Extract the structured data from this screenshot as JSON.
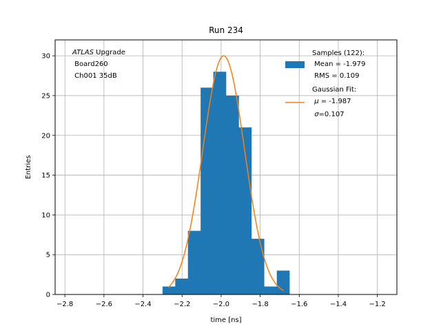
{
  "chart_data": {
    "type": "bar",
    "title": "Run 234",
    "xlabel": "time [ns]",
    "ylabel": "Entries",
    "xlim": [
      -2.85,
      -1.1
    ],
    "ylim": [
      0,
      32
    ],
    "grid": true,
    "x_ticks": [
      -2.8,
      -2.6,
      -2.4,
      -2.2,
      -2.0,
      -1.8,
      -1.6,
      -1.4,
      -1.2
    ],
    "x_tick_labels": [
      "−2.8",
      "−2.6",
      "−2.4",
      "−2.2",
      "−2.0",
      "−1.8",
      "−1.6",
      "−1.4",
      "−1.2"
    ],
    "y_ticks": [
      0,
      5,
      10,
      15,
      20,
      25,
      30
    ],
    "y_tick_labels": [
      "0",
      "5",
      "10",
      "15",
      "20",
      "25",
      "30"
    ],
    "histogram": {
      "bin_edges": [
        -2.3,
        -2.235,
        -2.17,
        -2.105,
        -2.04,
        -1.975,
        -1.91,
        -1.845,
        -1.78,
        -1.715,
        -1.65
      ],
      "counts": [
        1,
        2,
        8,
        26,
        28,
        25,
        21,
        7,
        1,
        3
      ],
      "color": "#1f77b4"
    },
    "fit": {
      "mu": -1.987,
      "sigma": 0.107,
      "amplitude": 30,
      "x_range": [
        -2.27,
        -1.68
      ],
      "color": "#ff7f0e"
    },
    "annotation": {
      "line1_italic": "ATLAS",
      "line1_rest": " Upgrade",
      "line2": " Board260",
      "line3": " Ch001 35dB"
    },
    "legend": {
      "placement": "top-right",
      "samples": {
        "line1": "Samples (122):",
        "line2": " Mean = -1.979",
        "line3": " RMS = 0.109"
      },
      "fit": {
        "line1": "Gaussian Fit:",
        "line2_sym": "μ",
        "line2_rest": " = -1.987",
        "line3_sym": "σ",
        "line3_rest": "=0.107"
      }
    }
  }
}
